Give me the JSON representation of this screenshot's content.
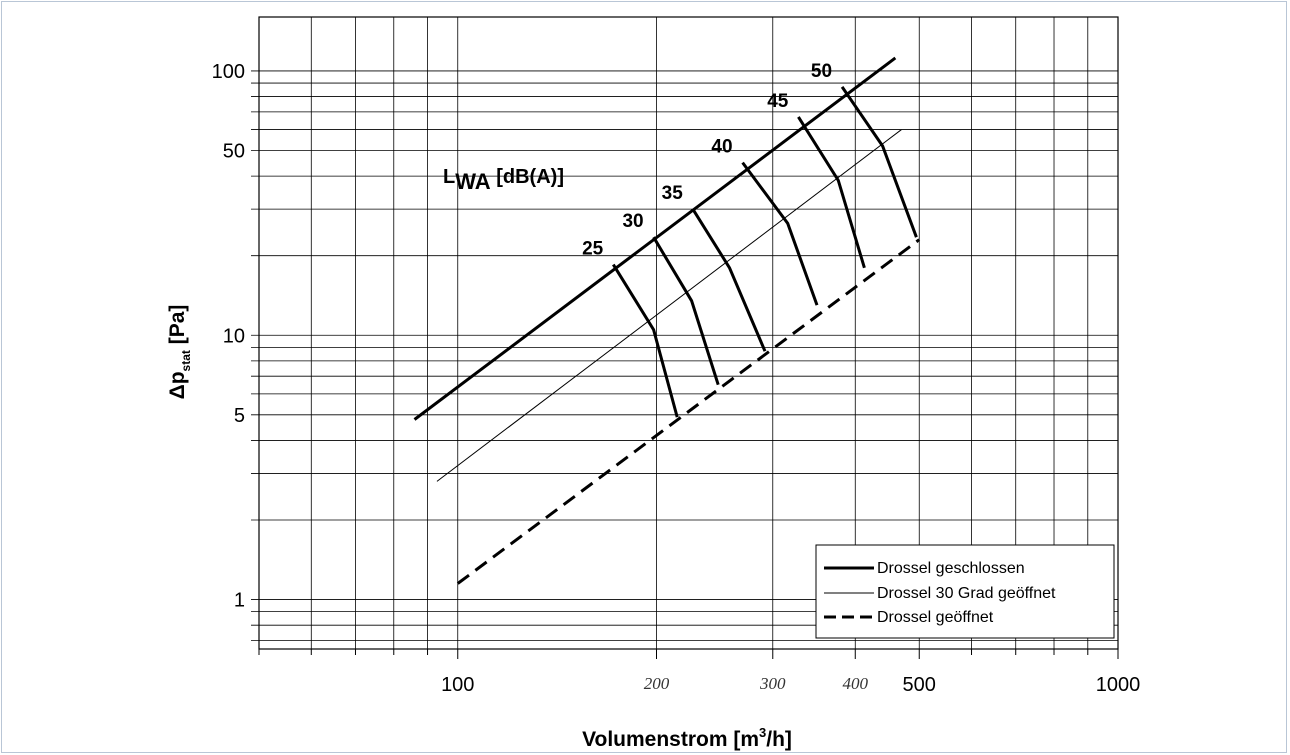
{
  "chart_data": {
    "type": "line",
    "xlabel": "Volumenstrom [m³/h]",
    "xlabel_main": "Volumenstrom [m",
    "xlabel_sup": "3",
    "xlabel_end": "/h]",
    "ylabel_main": "Δp",
    "ylabel_sub": "stat",
    "ylabel_end": " [Pa]",
    "x_scale": "log",
    "y_scale": "log",
    "xlim": [
      50,
      1000
    ],
    "ylim": [
      0.65,
      160
    ],
    "grid": true,
    "legend_position": "bottom-right",
    "x_ticks": [
      {
        "value": 100,
        "label": "100",
        "style": "normal"
      },
      {
        "value": 500,
        "label": "500",
        "style": "normal"
      },
      {
        "value": 1000,
        "label": "1000",
        "style": "normal"
      }
    ],
    "x_handwritten_ticks": [
      {
        "value": 200,
        "label": "200"
      },
      {
        "value": 300,
        "label": "300"
      },
      {
        "value": 400,
        "label": "400"
      }
    ],
    "y_ticks": [
      {
        "value": 1,
        "label": "1"
      },
      {
        "value": 5,
        "label": "5"
      },
      {
        "value": 10,
        "label": "10"
      },
      {
        "value": 50,
        "label": "50"
      },
      {
        "value": 100,
        "label": "100"
      }
    ],
    "series": [
      {
        "name": "Drossel geschlossen",
        "style": "thick",
        "x": [
          86,
          460
        ],
        "y": [
          4.8,
          112
        ]
      },
      {
        "name": "Drossel 30 Grad geöffnet",
        "style": "thin",
        "x": [
          93,
          470
        ],
        "y": [
          2.8,
          60
        ]
      },
      {
        "name": "Drossel geöffnet",
        "style": "dashed",
        "x": [
          100,
          500
        ],
        "y": [
          1.15,
          23
        ]
      }
    ],
    "lwa_label": {
      "main": "L",
      "sub": "WA",
      "rest": " [dB(A)]"
    },
    "lwa_lines": [
      {
        "label": "25",
        "points": [
          [
            172,
            18.5
          ],
          [
            198,
            10.5
          ],
          [
            215,
            4.9
          ]
        ]
      },
      {
        "label": "30",
        "points": [
          [
            198,
            23.5
          ],
          [
            226,
            13.5
          ],
          [
            248,
            6.5
          ]
        ]
      },
      {
        "label": "35",
        "points": [
          [
            227,
            30
          ],
          [
            258,
            18
          ],
          [
            292,
            8.7
          ]
        ]
      },
      {
        "label": "40",
        "points": [
          [
            270,
            45
          ],
          [
            316,
            26.5
          ],
          [
            350,
            13
          ]
        ]
      },
      {
        "label": "45",
        "points": [
          [
            328,
            67
          ],
          [
            377,
            38.5
          ],
          [
            413,
            18
          ]
        ]
      },
      {
        "label": "50",
        "points": [
          [
            382,
            87
          ],
          [
            440,
            52
          ],
          [
            495,
            23.5
          ]
        ]
      }
    ]
  }
}
